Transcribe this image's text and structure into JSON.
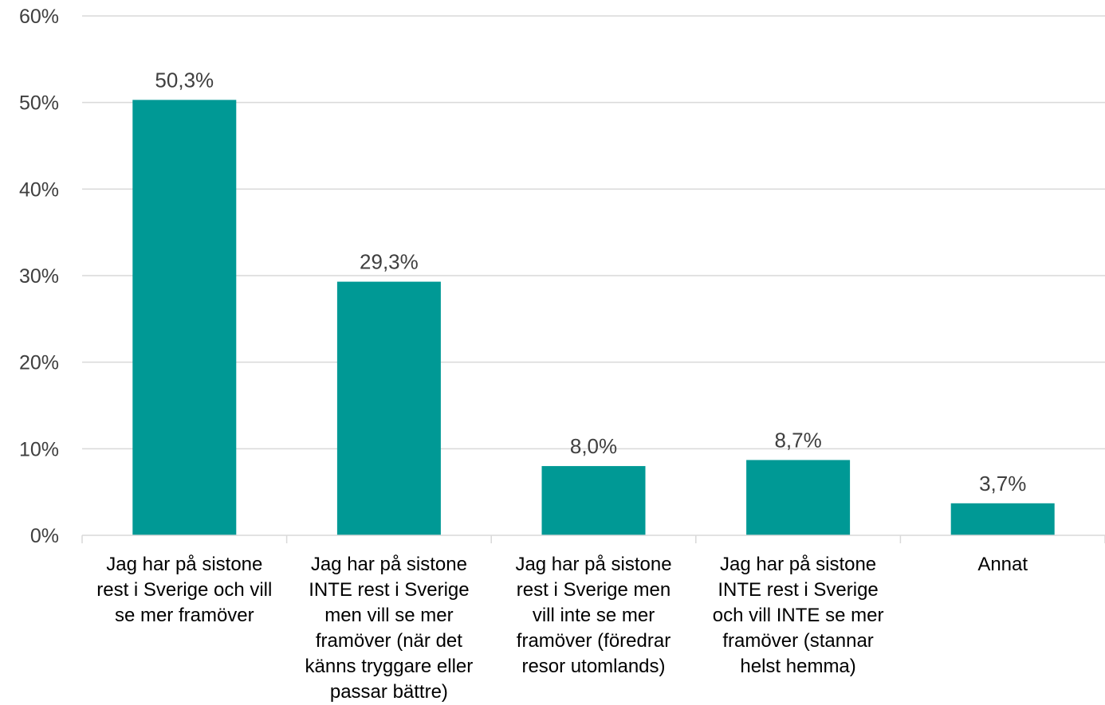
{
  "chart_data": {
    "type": "bar",
    "title": "",
    "xlabel": "",
    "ylabel": "",
    "ylim": [
      0,
      60
    ],
    "y_ticks": [
      "0%",
      "10%",
      "20%",
      "30%",
      "40%",
      "50%",
      "60%"
    ],
    "y_tick_values": [
      0,
      10,
      20,
      30,
      40,
      50,
      60
    ],
    "grid": true,
    "bar_color": "#009995",
    "categories": [
      [
        "Jag har på sistone",
        "rest i Sverige och vill",
        "se mer framöver"
      ],
      [
        "Jag har på sistone",
        "INTE rest i Sverige",
        "men vill se mer",
        "framöver (när det",
        "känns tryggare eller",
        "passar bättre)"
      ],
      [
        "Jag har på sistone",
        "rest i Sverige men",
        "vill inte se mer",
        "framöver (föredrar",
        "resor utomlands)"
      ],
      [
        "Jag har på sistone",
        "INTE rest i Sverige",
        "och vill INTE se mer",
        "framöver (stannar",
        "helst hemma)"
      ],
      [
        "Annat"
      ]
    ],
    "values": [
      50.3,
      29.3,
      8.0,
      8.7,
      3.7
    ],
    "data_labels": [
      "50,3%",
      "29,3%",
      "8,0%",
      "8,7%",
      "3,7%"
    ]
  }
}
